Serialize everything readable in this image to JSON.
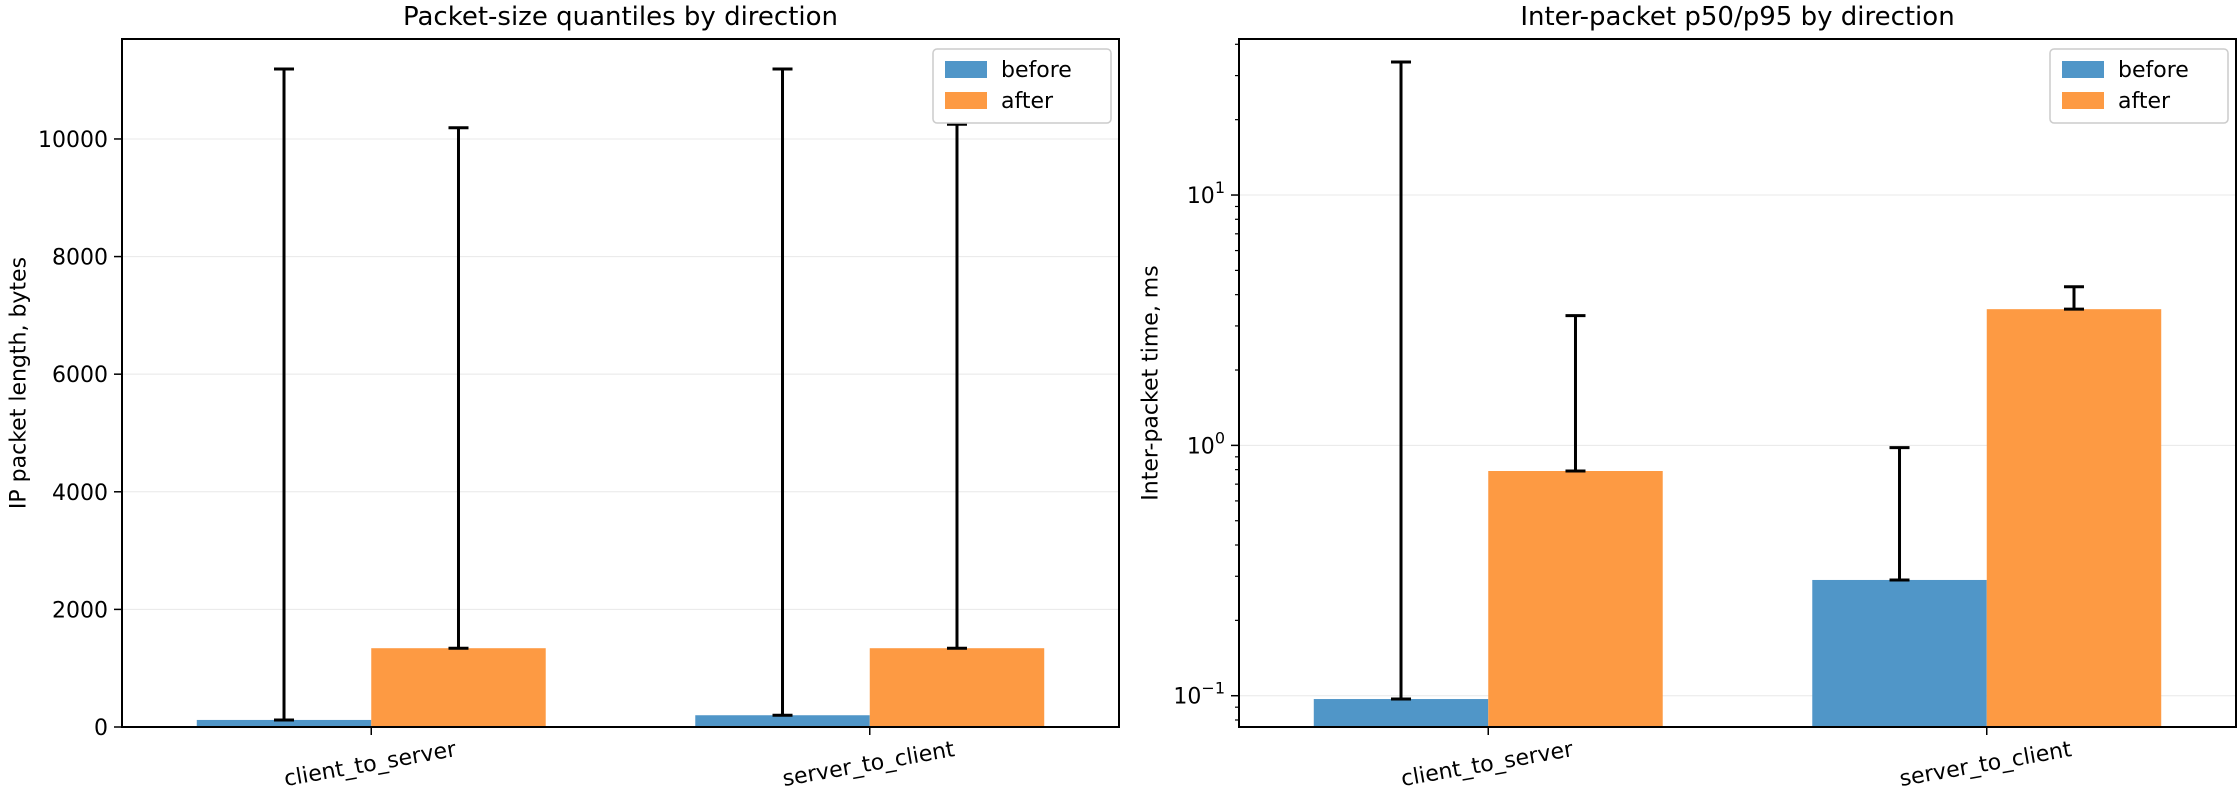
{
  "colors": {
    "before": "#5096c8",
    "after": "#fd9a43",
    "errorbar": "#000000",
    "grid": "#e8e8e8"
  },
  "chart_data": [
    {
      "type": "bar",
      "title": "Packet-size quantiles by direction",
      "xlabel": "",
      "ylabel": "IP packet length, bytes",
      "yscale": "linear",
      "ylim": [
        0,
        11700
      ],
      "yticks": [
        0,
        2000,
        4000,
        6000,
        8000,
        10000
      ],
      "ytick_labels": [
        "0",
        "2000",
        "4000",
        "6000",
        "8000",
        "10000"
      ],
      "grid": "horizontal",
      "legend": "top-right",
      "categories": [
        "client_to_server",
        "server_to_client"
      ],
      "series": [
        {
          "name": "before",
          "color_key": "before",
          "values": [
            120,
            200
          ],
          "upper": [
            11190,
            11190
          ]
        },
        {
          "name": "after",
          "color_key": "after",
          "values": [
            1340,
            1340
          ],
          "upper": [
            10190,
            10250
          ]
        }
      ]
    },
    {
      "type": "bar",
      "title": "Inter-packet p50/p95 by direction",
      "xlabel": "",
      "ylabel": "Inter-packet time, ms",
      "yscale": "log",
      "ylim": [
        0.075,
        42
      ],
      "yticks": [
        0.1,
        1,
        10
      ],
      "ytick_labels": [
        {
          "base": "10",
          "exp": "−1"
        },
        {
          "base": "10",
          "exp": "0"
        },
        {
          "base": "10",
          "exp": "1"
        }
      ],
      "grid": "horizontal",
      "legend": "top-right",
      "categories": [
        "client_to_server",
        "server_to_client"
      ],
      "series": [
        {
          "name": "before",
          "color_key": "before",
          "values": [
            0.097,
            0.29
          ],
          "upper": [
            34,
            0.98
          ]
        },
        {
          "name": "after",
          "color_key": "after",
          "values": [
            0.79,
            3.5
          ],
          "upper": [
            3.3,
            4.3
          ]
        }
      ]
    }
  ]
}
